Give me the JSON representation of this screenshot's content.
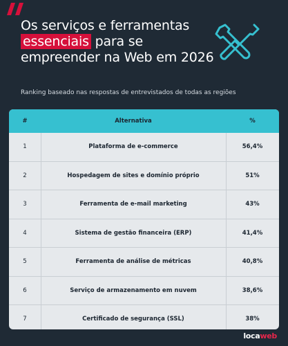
{
  "header": {
    "title_part1": "Os serviços e ferramentas ",
    "title_highlight": "essenciais",
    "title_part2": " para se empreender na Web em 2026",
    "subtitle": "Ranking baseado nas respostas de entrevistados de todas as regiões",
    "accent_color": "#d6103b",
    "icon": "wrench-screwdriver-icon"
  },
  "table": {
    "headers": [
      "#",
      "Alternativa",
      "%"
    ],
    "header_color": "#36c0d0",
    "rows": [
      {
        "rank": "1",
        "name": "Plataforma de e-commerce",
        "pct": "56,4%"
      },
      {
        "rank": "2",
        "name": "Hospedagem de sites e domínio próprio",
        "pct": "51%"
      },
      {
        "rank": "3",
        "name": "Ferramenta de e-mail marketing",
        "pct": "43%"
      },
      {
        "rank": "4",
        "name": "Sistema de gestão financeira (ERP)",
        "pct": "41,4%"
      },
      {
        "rank": "5",
        "name": "Ferramenta de análise de métricas",
        "pct": "40,8%"
      },
      {
        "rank": "6",
        "name": "Serviço de armazenamento em nuvem",
        "pct": "38,6%"
      },
      {
        "rank": "7",
        "name": "Certificado de segurança (SSL)",
        "pct": "38%"
      }
    ]
  },
  "footer": {
    "logo_text_1": "loca",
    "logo_text_2": "web"
  }
}
